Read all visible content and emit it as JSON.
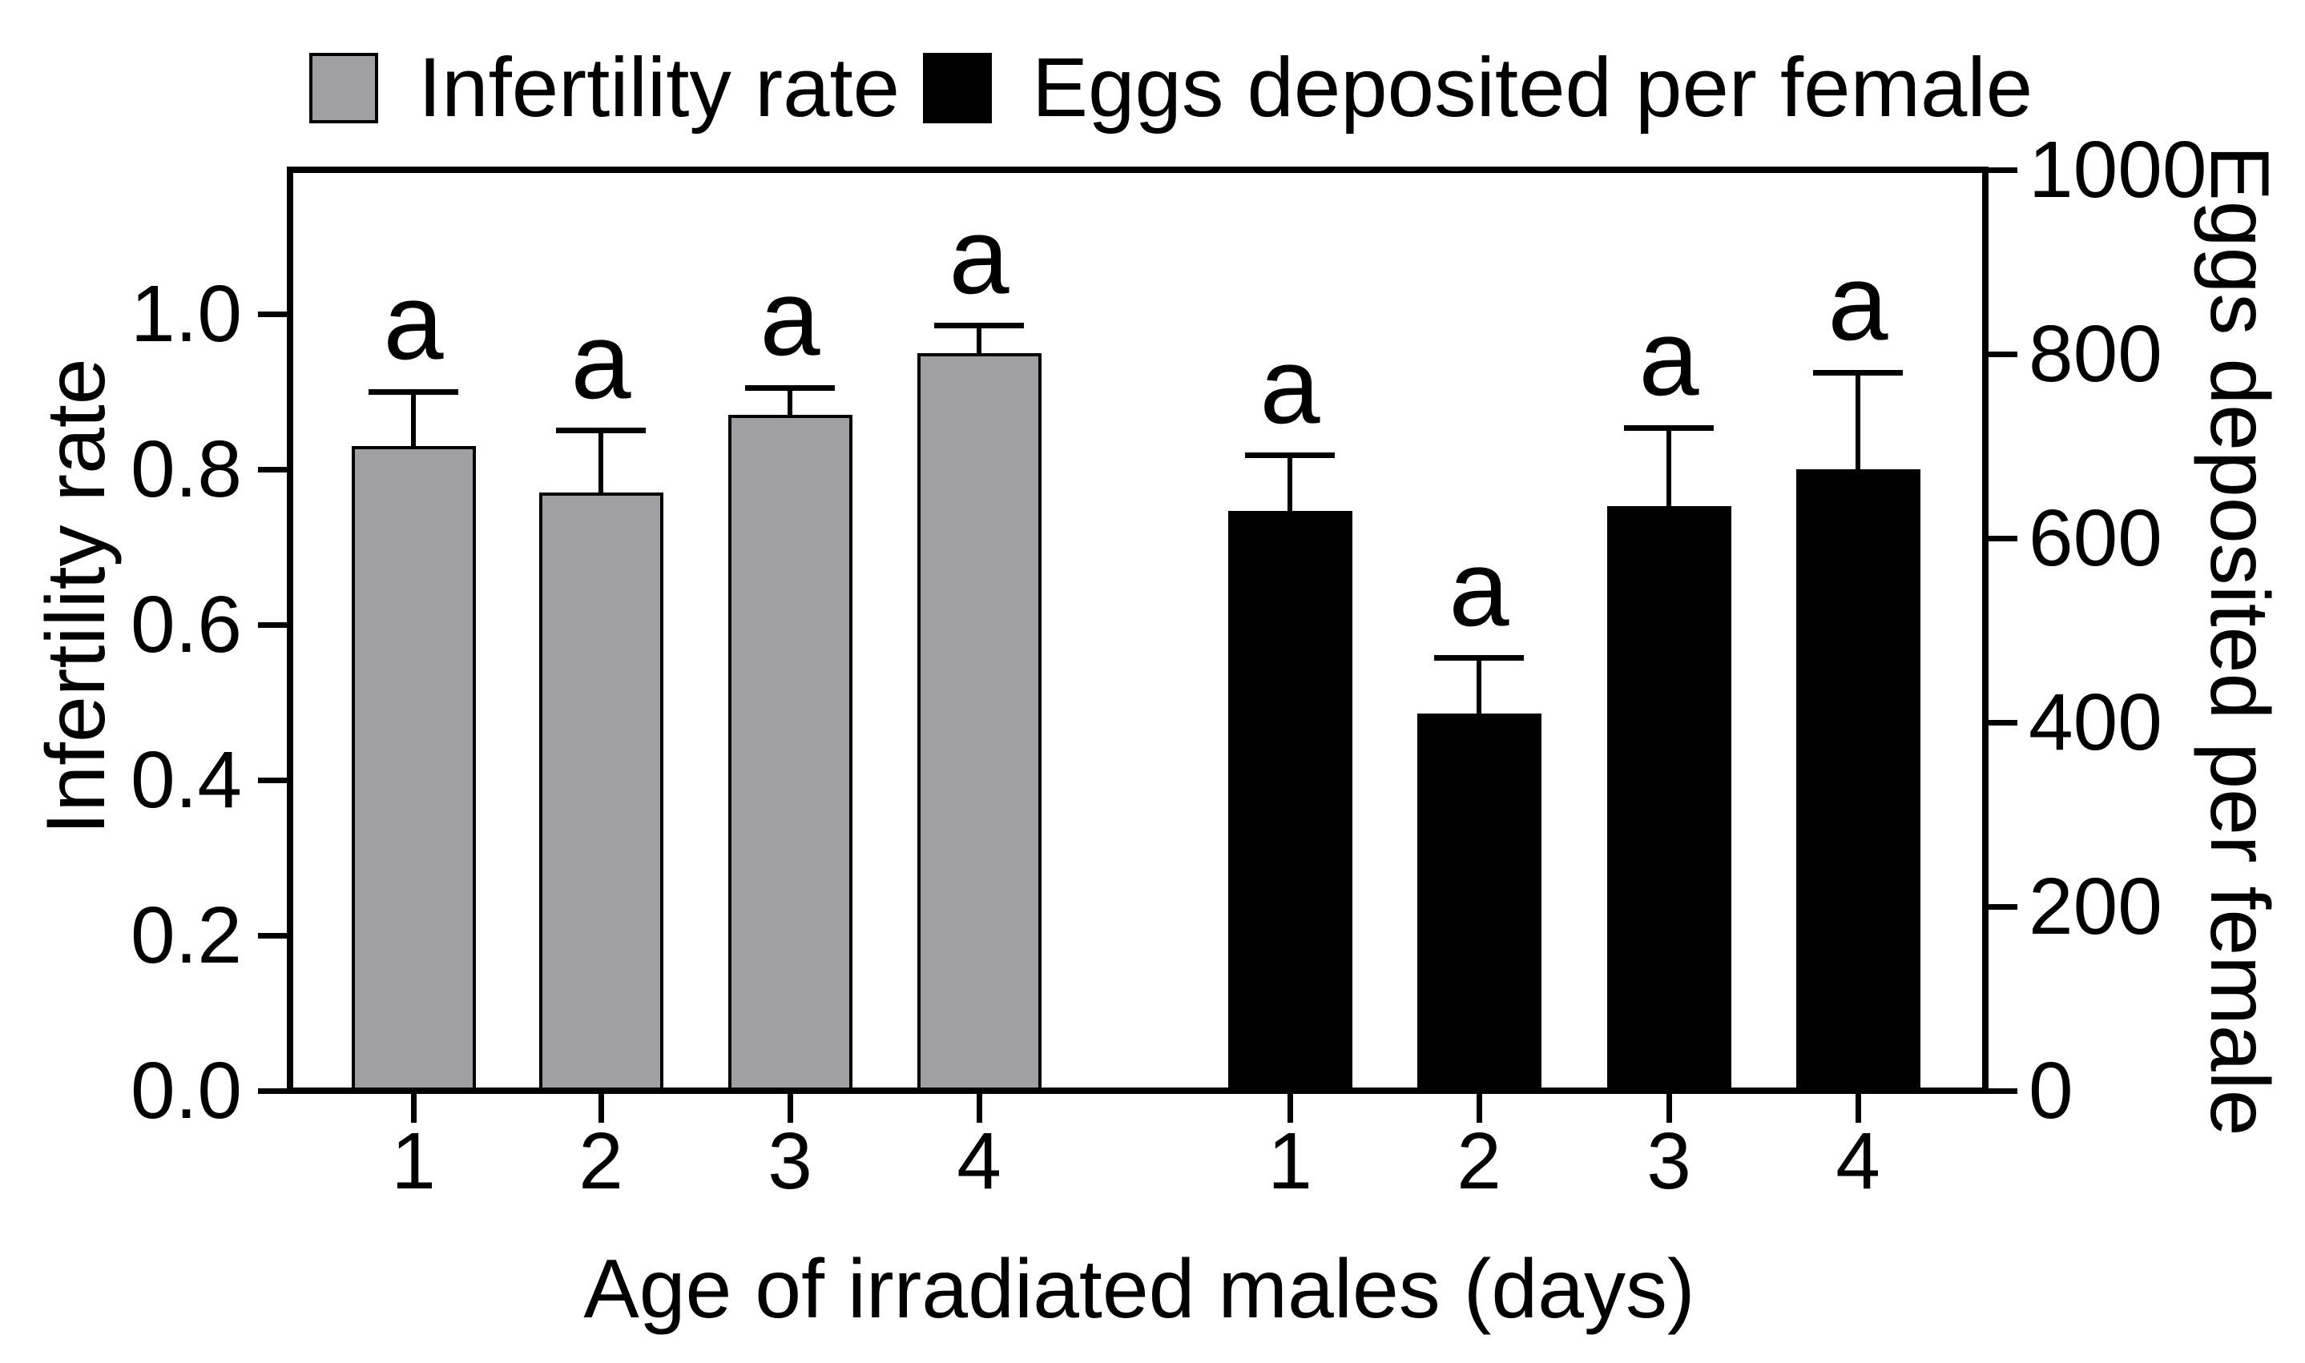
{
  "figure": {
    "legend": {
      "items": [
        {
          "label": "Infertility rate",
          "color": "#a0a0a4"
        },
        {
          "label": "Eggs deposited per female",
          "color": "#000000"
        }
      ]
    }
  },
  "chart_data": {
    "type": "bar",
    "title": "",
    "xlabel": "Age of irradiated males (days)",
    "categories": [
      "1",
      "2",
      "3",
      "4"
    ],
    "series": [
      {
        "name": "Infertility rate",
        "axis": "left",
        "color": "#a0a0a4",
        "values": [
          0.83,
          0.77,
          0.87,
          0.95
        ],
        "errors_upper": [
          0.07,
          0.08,
          0.035,
          0.035
        ],
        "point_labels": [
          "a",
          "a",
          "a",
          "a"
        ]
      },
      {
        "name": "Eggs deposited per female",
        "axis": "right",
        "color": "#000000",
        "values": [
          630,
          410,
          635,
          675
        ],
        "errors_upper": [
          60,
          60,
          85,
          105
        ],
        "point_labels": [
          "a",
          "a",
          "a",
          "a"
        ]
      }
    ],
    "left_axis": {
      "label": "Infertility rate",
      "tick_labels": [
        "0.0",
        "0.2",
        "0.4",
        "0.6",
        "0.8",
        "1.0"
      ],
      "min": 0,
      "max_tick": 1.0,
      "value_at_frame_top": 1.186
    },
    "right_axis": {
      "label": "Eggs deposited per female",
      "tick_labels": [
        "0",
        "200",
        "400",
        "600",
        "800",
        "1000"
      ],
      "min": 0,
      "max_tick": 1000,
      "value_at_frame_top": 1000
    },
    "grid": false,
    "legend_position": "top",
    "error_bars": "upper-only-with-caps"
  }
}
